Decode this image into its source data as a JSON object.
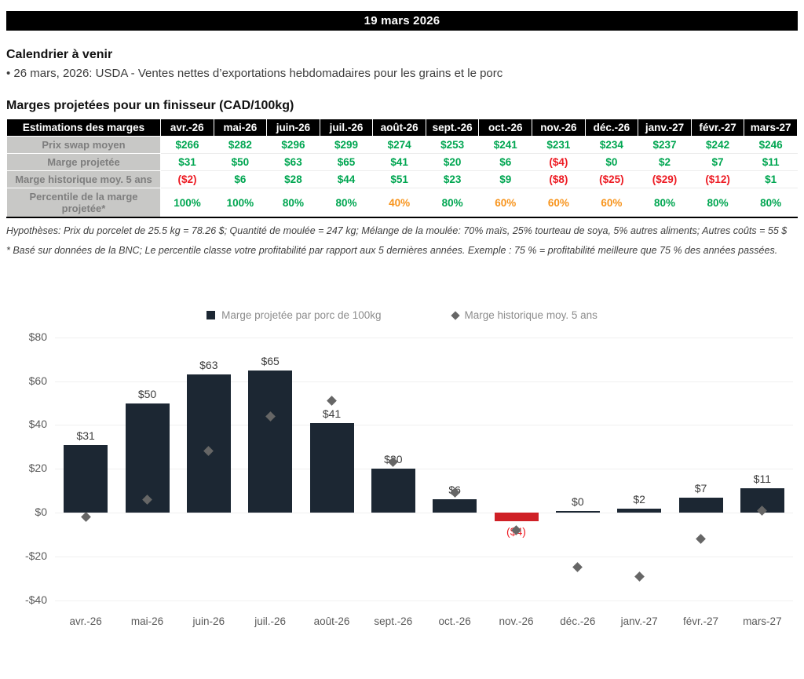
{
  "header": {
    "date": "19 mars 2026"
  },
  "calendar": {
    "title": "Calendrier à venir",
    "items": [
      "• 26 mars, 2026: USDA - Ventes nettes d’exportations hebdomadaires pour les grains et le porc"
    ]
  },
  "margins": {
    "title": "Marges projetées pour un finisseur (CAD/100kg)",
    "table": {
      "header": [
        "Estimations des marges",
        "avr.-26",
        "mai-26",
        "juin-26",
        "juil.-26",
        "août-26",
        "sept.-26",
        "oct.-26",
        "nov.-26",
        "déc.-26",
        "janv.-27",
        "févr.-27",
        "mars-27"
      ],
      "rows": [
        {
          "label": "Prix swap moyen",
          "values": [
            "$266",
            "$282",
            "$296",
            "$299",
            "$274",
            "$253",
            "$241",
            "$231",
            "$234",
            "$237",
            "$242",
            "$246"
          ],
          "classes": [
            "pos",
            "pos",
            "pos",
            "pos",
            "pos",
            "pos",
            "pos",
            "pos",
            "pos",
            "pos",
            "pos",
            "pos"
          ]
        },
        {
          "label": "Marge projetée",
          "values": [
            "$31",
            "$50",
            "$63",
            "$65",
            "$41",
            "$20",
            "$6",
            "($4)",
            "$0",
            "$2",
            "$7",
            "$11"
          ],
          "classes": [
            "pos",
            "pos",
            "pos",
            "pos",
            "pos",
            "pos",
            "pos",
            "neg",
            "pos",
            "pos",
            "pos",
            "pos"
          ]
        },
        {
          "label": "Marge historique moy. 5 ans",
          "values": [
            "($2)",
            "$6",
            "$28",
            "$44",
            "$51",
            "$23",
            "$9",
            "($8)",
            "($25)",
            "($29)",
            "($12)",
            "$1"
          ],
          "classes": [
            "neg",
            "pos",
            "pos",
            "pos",
            "pos",
            "pos",
            "pos",
            "neg",
            "neg",
            "neg",
            "neg",
            "pos"
          ]
        },
        {
          "label": "Percentile de la marge projetée*",
          "values": [
            "100%",
            "100%",
            "80%",
            "80%",
            "40%",
            "80%",
            "60%",
            "60%",
            "60%",
            "80%",
            "80%",
            "80%"
          ],
          "classes": [
            "pos",
            "pos",
            "pos",
            "pos",
            "warn",
            "pos",
            "warn",
            "warn",
            "warn",
            "pos",
            "pos",
            "pos"
          ]
        }
      ]
    },
    "footnotes": [
      "Hypothèses: Prix du porcelet de 25.5 kg = 78.26 $; Quantité de moulée = 247 kg; Mélange de la moulée: 70% maïs, 25% tourteau de soya, 5% autres aliments; Autres coûts = 55 $",
      "* Basé sur données de la BNC; Le percentile classe votre profitabilité par rapport aux 5 dernières années. Exemple : 75 % = profitabilité meilleure que 75 % des années passées."
    ]
  },
  "chart_data": {
    "type": "bar",
    "categories": [
      "avr.-26",
      "mai-26",
      "juin-26",
      "juil.-26",
      "août-26",
      "sept.-26",
      "oct.-26",
      "nov.-26",
      "déc.-26",
      "janv.-27",
      "févr.-27",
      "mars-27"
    ],
    "series": [
      {
        "name": "Marge projetée par porc de 100kg",
        "type": "bar",
        "values": [
          31,
          50,
          63,
          65,
          41,
          20,
          6,
          -4,
          0,
          2,
          7,
          11
        ],
        "labels": [
          "$31",
          "$50",
          "$63",
          "$65",
          "$41",
          "$20",
          "$6",
          "($4)",
          "$0",
          "$2",
          "$7",
          "$11"
        ]
      },
      {
        "name": "Marge historique moy. 5 ans",
        "type": "scatter",
        "marker": "diamond",
        "values": [
          -2,
          6,
          28,
          44,
          51,
          23,
          9,
          -8,
          -25,
          -29,
          -12,
          1
        ]
      }
    ],
    "ylim": [
      -40,
      80
    ],
    "yticks": [
      80,
      60,
      40,
      20,
      0,
      -20,
      -40
    ],
    "ytick_labels": [
      "$80",
      "$60",
      "$40",
      "$20",
      "$0",
      "-$20",
      "-$40"
    ],
    "grid": "faint-horizontal",
    "legend_position": "top",
    "colors": {
      "bar_positive": "#1c2733",
      "bar_negative": "#cf2026",
      "marker": "#666666",
      "axis_text": "#5a5a5a",
      "negative_label": "#ed1c24"
    }
  }
}
